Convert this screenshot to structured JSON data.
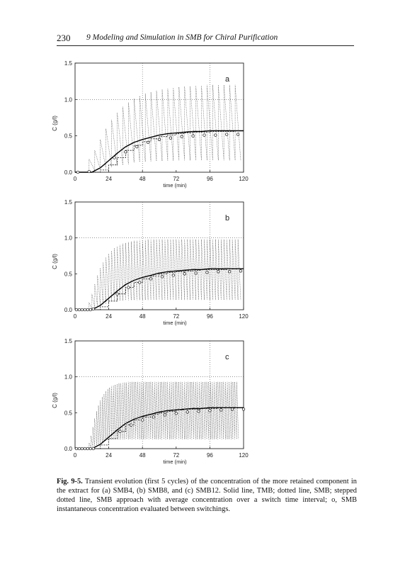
{
  "header": {
    "page_number": "230",
    "running_title": "9 Modeling and Simulation in SMB for Chiral Purification"
  },
  "figure": {
    "caption_label": "Fig. 9-5.",
    "caption_text": " Transient evolution (first 5 cycles) of the concentration of the more retained component in the extract for (a) SMB4, (b) SMB8, and (c) SMB12. Solid line, TMB; dotted line, SMB; stepped dotted line, SMB approach with average concentration over a switch time interval; o, SMB instantaneous concentration evaluated between switchings."
  },
  "chart_data": [
    {
      "type": "line",
      "panel_label": "a",
      "xlabel": "time (min)",
      "ylabel": "C (g/l)",
      "xlim": [
        0,
        120
      ],
      "ylim": [
        0,
        1.5
      ],
      "xticks": [
        "0",
        "24",
        "48",
        "72",
        "96",
        "120"
      ],
      "yticks": [
        "0.0",
        "0.5",
        "1.0",
        "1.5"
      ],
      "grid": "dotted at x=48,96 and y=1.0",
      "switch_interval_min": 4,
      "peak_values": [
        0.18,
        0.3,
        0.45,
        0.6,
        0.72,
        0.82,
        0.9,
        0.96,
        1.01,
        1.05,
        1.08,
        1.1,
        1.12,
        1.14,
        1.15,
        1.16,
        1.17,
        1.18,
        1.18,
        1.19,
        1.19,
        1.2,
        1.2,
        1.2,
        1.2,
        1.2,
        1.2
      ],
      "series": [
        {
          "name": "TMB",
          "style": "solid",
          "x": [
            0,
            12,
            18,
            24,
            30,
            36,
            42,
            48,
            54,
            60,
            66,
            72,
            78,
            84,
            90,
            96,
            102,
            108,
            114,
            120
          ],
          "y": [
            0,
            0,
            0.06,
            0.16,
            0.26,
            0.35,
            0.41,
            0.45,
            0.48,
            0.51,
            0.53,
            0.54,
            0.55,
            0.56,
            0.56,
            0.57,
            0.57,
            0.57,
            0.57,
            0.57
          ]
        },
        {
          "name": "SMB stepped average",
          "style": "stepped-dotted",
          "x": [
            0,
            12,
            18,
            24,
            30,
            36,
            42,
            48,
            54,
            60,
            66,
            72,
            78,
            84,
            90,
            96,
            102,
            108,
            114,
            120
          ],
          "y": [
            0,
            0,
            0.03,
            0.1,
            0.2,
            0.3,
            0.37,
            0.42,
            0.46,
            0.49,
            0.51,
            0.53,
            0.54,
            0.55,
            0.55,
            0.56,
            0.56,
            0.56,
            0.57,
            0.57
          ]
        },
        {
          "name": "SMB instantaneous",
          "style": "circles",
          "x": [
            2,
            10,
            28,
            36,
            44,
            52,
            60,
            68,
            76,
            84,
            92,
            100,
            108,
            116
          ],
          "y": [
            0,
            0.01,
            0.2,
            0.28,
            0.35,
            0.41,
            0.45,
            0.47,
            0.49,
            0.5,
            0.51,
            0.51,
            0.52,
            0.52
          ]
        }
      ]
    },
    {
      "type": "line",
      "panel_label": "b",
      "xlabel": "time (min)",
      "ylabel": "C (g/l)",
      "xlim": [
        0,
        120
      ],
      "ylim": [
        0,
        1.5
      ],
      "xticks": [
        "0",
        "24",
        "48",
        "72",
        "96",
        "120"
      ],
      "yticks": [
        "0.0",
        "0.5",
        "1.0",
        "1.5"
      ],
      "grid": "dotted at x=48,96 and y=1.0",
      "switch_interval_min": 2,
      "peak_values": [
        0.1,
        0.22,
        0.36,
        0.48,
        0.58,
        0.66,
        0.73,
        0.78,
        0.82,
        0.86,
        0.88,
        0.9,
        0.92,
        0.93,
        0.94,
        0.95,
        0.96,
        0.96,
        0.97,
        0.97,
        0.97,
        0.98,
        0.98,
        0.98,
        0.98,
        0.98,
        0.98,
        0.98,
        0.98,
        0.98,
        0.98,
        0.98,
        0.98,
        0.98,
        0.98,
        0.98,
        0.98,
        0.98,
        0.98,
        0.98,
        0.98,
        0.98,
        0.98,
        0.98,
        0.98,
        0.98,
        0.98,
        0.98,
        0.98,
        0.98,
        0.98,
        0.98,
        0.98,
        0.98
      ],
      "series": [
        {
          "name": "TMB",
          "style": "solid",
          "x": [
            0,
            12,
            18,
            24,
            30,
            36,
            42,
            48,
            54,
            60,
            66,
            72,
            78,
            84,
            90,
            96,
            102,
            108,
            114,
            120
          ],
          "y": [
            0,
            0,
            0.06,
            0.16,
            0.26,
            0.35,
            0.41,
            0.45,
            0.48,
            0.51,
            0.53,
            0.54,
            0.55,
            0.56,
            0.56,
            0.57,
            0.57,
            0.57,
            0.57,
            0.57
          ]
        },
        {
          "name": "SMB stepped average",
          "style": "stepped-dotted",
          "x": [
            0,
            12,
            18,
            24,
            30,
            36,
            42,
            48,
            54,
            60,
            66,
            72,
            78,
            84,
            90,
            96,
            102,
            108,
            114,
            120
          ],
          "y": [
            0,
            0,
            0.04,
            0.12,
            0.22,
            0.31,
            0.38,
            0.43,
            0.47,
            0.5,
            0.52,
            0.53,
            0.54,
            0.55,
            0.56,
            0.56,
            0.56,
            0.57,
            0.57,
            0.57
          ]
        },
        {
          "name": "SMB instantaneous",
          "style": "circles",
          "x": [
            1,
            3,
            5,
            7,
            9,
            11,
            13,
            30,
            38,
            46,
            54,
            62,
            70,
            78,
            86,
            94,
            102,
            110,
            118
          ],
          "y": [
            0,
            0,
            0,
            0,
            0,
            0,
            0.01,
            0.22,
            0.31,
            0.38,
            0.43,
            0.46,
            0.48,
            0.5,
            0.51,
            0.52,
            0.53,
            0.53,
            0.54
          ]
        }
      ]
    },
    {
      "type": "line",
      "panel_label": "c",
      "xlabel": "time (min)",
      "ylabel": "C (g/l)",
      "xlim": [
        0,
        120
      ],
      "ylim": [
        0,
        1.5
      ],
      "xticks": [
        "0",
        "24",
        "48",
        "72",
        "96",
        "120"
      ],
      "yticks": [
        "0.0",
        "0.5",
        "1.0",
        "1.5"
      ],
      "grid": "dotted at x=48,96 and y=1.0",
      "switch_interval_min": 1.33,
      "peak_values": [
        0.08,
        0.18,
        0.3,
        0.42,
        0.52,
        0.6,
        0.67,
        0.72,
        0.76,
        0.8,
        0.83,
        0.85,
        0.87,
        0.88,
        0.89,
        0.9,
        0.91,
        0.91,
        0.92,
        0.92,
        0.92,
        0.93,
        0.93,
        0.93,
        0.93,
        0.93,
        0.93,
        0.93,
        0.93,
        0.93,
        0.93,
        0.93,
        0.93,
        0.93,
        0.93,
        0.93,
        0.93,
        0.93,
        0.93,
        0.93,
        0.93,
        0.93,
        0.93,
        0.93,
        0.93,
        0.93,
        0.93,
        0.93,
        0.93,
        0.93,
        0.93,
        0.93,
        0.93,
        0.93,
        0.93,
        0.93,
        0.93,
        0.93,
        0.93,
        0.93,
        0.93,
        0.93,
        0.93,
        0.93,
        0.93,
        0.93,
        0.93,
        0.93,
        0.93,
        0.93,
        0.93,
        0.93,
        0.93,
        0.93,
        0.93,
        0.93,
        0.93,
        0.93,
        0.93,
        0.93
      ],
      "series": [
        {
          "name": "TMB",
          "style": "solid",
          "x": [
            0,
            12,
            18,
            24,
            30,
            36,
            42,
            48,
            54,
            60,
            66,
            72,
            78,
            84,
            90,
            96,
            102,
            108,
            114,
            120
          ],
          "y": [
            0,
            0,
            0.06,
            0.16,
            0.26,
            0.35,
            0.41,
            0.45,
            0.48,
            0.51,
            0.53,
            0.54,
            0.55,
            0.56,
            0.56,
            0.57,
            0.57,
            0.57,
            0.57,
            0.57
          ]
        },
        {
          "name": "SMB stepped average",
          "style": "stepped-dotted",
          "x": [
            0,
            12,
            18,
            24,
            30,
            36,
            42,
            48,
            54,
            60,
            66,
            72,
            78,
            84,
            90,
            96,
            102,
            108,
            114,
            120
          ],
          "y": [
            0,
            0,
            0.05,
            0.14,
            0.24,
            0.33,
            0.4,
            0.44,
            0.48,
            0.5,
            0.52,
            0.54,
            0.55,
            0.55,
            0.56,
            0.56,
            0.57,
            0.57,
            0.57,
            0.57
          ]
        },
        {
          "name": "SMB instantaneous",
          "style": "circles",
          "x": [
            1,
            3,
            5,
            7,
            9,
            11,
            13,
            32,
            40,
            48,
            56,
            64,
            72,
            80,
            88,
            96,
            104,
            112,
            120
          ],
          "y": [
            0,
            0,
            0,
            0,
            0,
            0,
            0,
            0.24,
            0.33,
            0.4,
            0.44,
            0.47,
            0.49,
            0.51,
            0.52,
            0.53,
            0.54,
            0.55,
            0.55
          ]
        }
      ]
    }
  ]
}
